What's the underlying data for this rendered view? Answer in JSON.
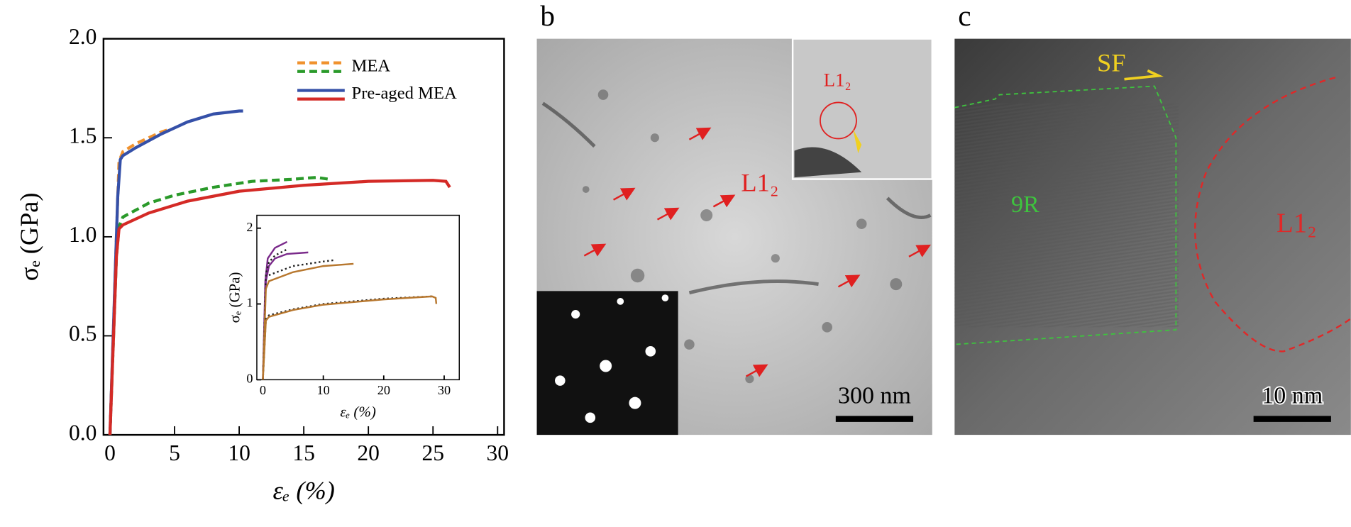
{
  "chart_data": [
    {
      "type": "line",
      "panel": "a",
      "ylabel": "σₑ (GPa)",
      "xlabel": "εₑ (%)",
      "xlim": [
        -0.5,
        30.5
      ],
      "ylim": [
        0,
        2
      ],
      "xticks": [
        0,
        5,
        10,
        15,
        20,
        25,
        30
      ],
      "yticks": [
        {
          "value": 0,
          "label": "0.0"
        },
        0.5,
        {
          "value": 1,
          "label": "1.0"
        },
        1.5,
        {
          "value": 2,
          "label": "2.0"
        }
      ],
      "legend": "upper right",
      "groups": [
        {
          "name": "MEA",
          "style": "dashed",
          "series": [
            {
              "color": "#f0922e",
              "x": [
                0,
                0.5,
                0.7,
                1,
                2,
                3,
                4,
                4.5
              ],
              "values": [
                0,
                1.0,
                1.38,
                1.43,
                1.47,
                1.5,
                1.53,
                1.54
              ]
            },
            {
              "color": "#2a9a2a",
              "x": [
                0,
                0.5,
                0.7,
                1,
                3,
                5,
                8,
                11,
                14,
                16,
                17
              ],
              "values": [
                0,
                0.9,
                1.05,
                1.1,
                1.17,
                1.21,
                1.25,
                1.28,
                1.29,
                1.3,
                1.29
              ]
            }
          ]
        },
        {
          "name": "Pre-aged MEA",
          "style": "solid",
          "series": [
            {
              "color": "#3550a8",
              "x": [
                0,
                0.6,
                0.8,
                1,
                2,
                4,
                6,
                8,
                10,
                10.3
              ],
              "values": [
                0,
                1.2,
                1.39,
                1.41,
                1.45,
                1.52,
                1.58,
                1.62,
                1.635,
                1.635
              ]
            },
            {
              "color": "#d42a26",
              "x": [
                0,
                0.5,
                0.7,
                1,
                3,
                6,
                10,
                15,
                20,
                25,
                26,
                26.3
              ],
              "values": [
                0,
                0.9,
                1.04,
                1.06,
                1.12,
                1.18,
                1.23,
                1.26,
                1.28,
                1.285,
                1.28,
                1.25
              ]
            }
          ]
        }
      ]
    },
    {
      "type": "line",
      "inset": true,
      "ylabel": "σₑ (GPa)",
      "xlabel": "εₑ (%)",
      "xlim": [
        -1,
        32.5
      ],
      "ylim": [
        0,
        2.17
      ],
      "xticks": [
        0,
        10,
        20,
        30
      ],
      "yticks": [
        0,
        1,
        2
      ],
      "series": [
        {
          "color": "#7a2a8a",
          "style": "solid",
          "x": [
            0,
            0.4,
            0.8,
            2,
            4
          ],
          "values": [
            0,
            1.3,
            1.6,
            1.74,
            1.82
          ]
        },
        {
          "color": "#7a2a8a",
          "style": "solid",
          "x": [
            0,
            0.5,
            1,
            2,
            4,
            7.5
          ],
          "values": [
            0,
            1.3,
            1.5,
            1.6,
            1.66,
            1.68
          ]
        },
        {
          "color": "#222222",
          "style": "dotted",
          "x": [
            0,
            0.5,
            1,
            2,
            4
          ],
          "values": [
            0,
            1.4,
            1.55,
            1.64,
            1.72
          ]
        },
        {
          "color": "#222222",
          "style": "dotted",
          "x": [
            1,
            5,
            10,
            12
          ],
          "values": [
            1.38,
            1.5,
            1.56,
            1.58
          ]
        },
        {
          "color": "#b7772e",
          "style": "solid",
          "x": [
            0,
            0.5,
            1,
            5,
            10,
            15
          ],
          "values": [
            0,
            1.2,
            1.3,
            1.42,
            1.5,
            1.53
          ]
        },
        {
          "color": "#222222",
          "style": "dotted",
          "x": [
            0,
            0.5,
            1,
            5,
            10,
            20,
            28
          ],
          "values": [
            0,
            0.8,
            0.85,
            0.93,
            1.0,
            1.07,
            1.1
          ]
        },
        {
          "color": "#b7772e",
          "style": "solid",
          "x": [
            0,
            0.5,
            1,
            5,
            10,
            20,
            28,
            28.6,
            28.7
          ],
          "values": [
            0,
            0.78,
            0.83,
            0.92,
            0.99,
            1.06,
            1.1,
            1.08,
            1.0
          ]
        }
      ]
    }
  ],
  "panels": {
    "b": {
      "label": "b",
      "particle": "L1₂",
      "inset_particle": "L1₂",
      "scale": "300 nm"
    },
    "c": {
      "label": "c",
      "phase": "9R",
      "fault": "SF",
      "particle": "L1₂",
      "scale": "10 nm"
    }
  }
}
